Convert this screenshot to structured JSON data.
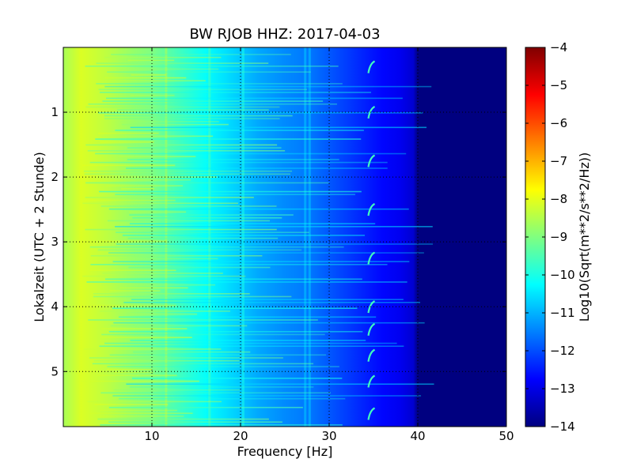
{
  "chart_data": {
    "type": "heatmap",
    "title": "BW RJOB HHZ: 2017-04-03",
    "xlabel": "Frequency [Hz]",
    "ylabel": "Lokalzeit (UTC + 2 Stunde)",
    "colorbar_label": "Log10(Sqrt(m**2/s**2/Hz))",
    "xlim": [
      0,
      50
    ],
    "ylim": [
      5.85,
      0
    ],
    "x_ticks": [
      10,
      20,
      30,
      40,
      50
    ],
    "x_tick_labels": [
      "10",
      "20",
      "30",
      "40",
      "50"
    ],
    "y_ticks": [
      1,
      2,
      3,
      4,
      5
    ],
    "y_tick_labels": [
      "1",
      "2",
      "3",
      "4",
      "5"
    ],
    "clim": [
      -14,
      -4
    ],
    "colorbar_ticks": [
      -4,
      -5,
      -6,
      -7,
      -8,
      -9,
      -10,
      -11,
      -12,
      -13,
      -14
    ],
    "colorbar_tick_labels": [
      "−4",
      "−5",
      "−6",
      "−7",
      "−8",
      "−9",
      "−10",
      "−11",
      "−12",
      "−13",
      "−14"
    ],
    "colormap": "jet",
    "grid": true,
    "spectrum_profile": {
      "frequency_hz": [
        0,
        2,
        5,
        8,
        10,
        12,
        14,
        16,
        18,
        20,
        22,
        25,
        28,
        30,
        33,
        36,
        38,
        39.5,
        40,
        50
      ],
      "log10_amplitude": [
        -8.6,
        -8.1,
        -8.4,
        -8.8,
        -9.0,
        -9.4,
        -9.8,
        -10.2,
        -10.5,
        -10.8,
        -11.1,
        -11.4,
        -11.6,
        -11.9,
        -12.3,
        -12.7,
        -12.9,
        -13.2,
        -14.0,
        -14.0
      ]
    },
    "narrowband_lines_hz": [
      11.6,
      16.5,
      20.3,
      27.3,
      27.8
    ],
    "transient_event_hours": [
      0.25,
      0.95,
      1.7,
      2.45,
      3.2,
      3.95,
      4.3,
      4.7,
      5.1,
      5.6
    ],
    "transient_event_frequency_hz": 34.6,
    "colors": {
      "axes_frame": "#000000",
      "grid_line": "#000000",
      "background": "#ffffff"
    }
  }
}
